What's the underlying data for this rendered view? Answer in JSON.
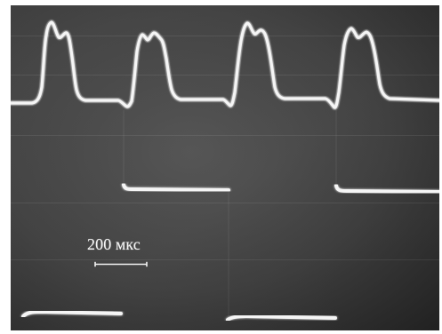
{
  "photo": {
    "scale_label": "200 мкс",
    "colors": {
      "screen": "#3a3a3a",
      "trace": "#f5f5f5",
      "frame": "#ffffff"
    }
  }
}
